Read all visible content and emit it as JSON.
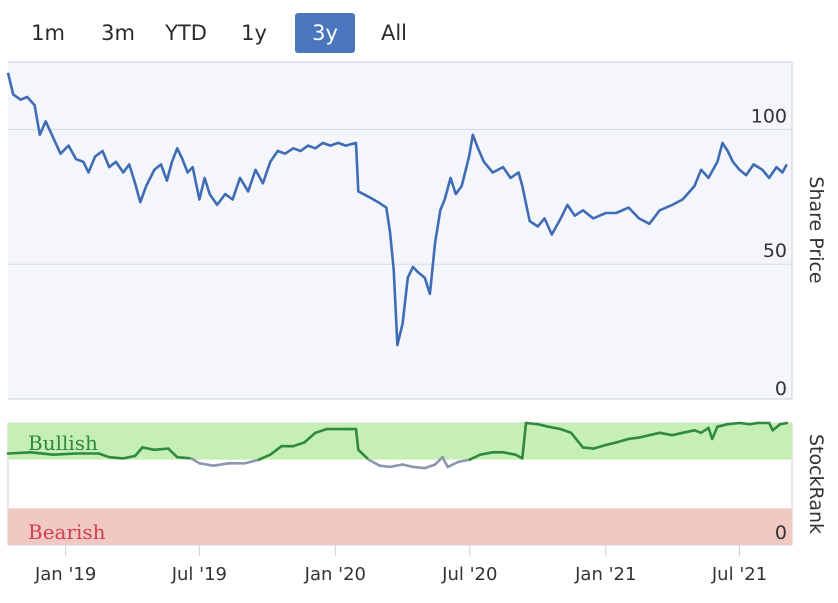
{
  "range_selector": {
    "buttons": [
      {
        "label": "1m",
        "active": false
      },
      {
        "label": "3m",
        "active": false
      },
      {
        "label": "YTD",
        "active": false
      },
      {
        "label": "1y",
        "active": false
      },
      {
        "label": "3y",
        "active": true
      },
      {
        "label": "All",
        "active": false
      }
    ]
  },
  "colors": {
    "price_line": "#3f6db5",
    "bullish_zone": "#c6efb5",
    "bearish_zone": "#f0c8c4",
    "stockrank_green": "#2f8a3c",
    "stockrank_grey": "#8c97ad",
    "plot_bg": "#f4f6fb",
    "bullish_text": "#2f8a3c",
    "bearish_text": "#d0404f",
    "active_button": "#4a76bd"
  },
  "chart_data": [
    {
      "type": "line",
      "name": "share_price",
      "ylabel": "Share Price",
      "yticks": [
        0,
        50,
        100
      ],
      "ylim": [
        0,
        125
      ],
      "xlim": [
        "2018-10-15",
        "2021-09-10"
      ],
      "x_ticks": [
        {
          "date": "2019-01-01",
          "label": "Jan '19"
        },
        {
          "date": "2019-07-01",
          "label": "Jul '19"
        },
        {
          "date": "2020-01-01",
          "label": "Jan '20"
        },
        {
          "date": "2020-07-01",
          "label": "Jul '20"
        },
        {
          "date": "2021-01-01",
          "label": "Jan '21"
        },
        {
          "date": "2021-07-01",
          "label": "Jul '21"
        }
      ],
      "grid": true,
      "points": [
        [
          "2018-10-15",
          121
        ],
        [
          "2018-10-22",
          113
        ],
        [
          "2018-11-01",
          111
        ],
        [
          "2018-11-10",
          112
        ],
        [
          "2018-11-20",
          109
        ],
        [
          "2018-11-27",
          98
        ],
        [
          "2018-12-05",
          103
        ],
        [
          "2018-12-15",
          97
        ],
        [
          "2018-12-25",
          91
        ],
        [
          "2019-01-05",
          94
        ],
        [
          "2019-01-15",
          89
        ],
        [
          "2019-01-25",
          88
        ],
        [
          "2019-02-01",
          84
        ],
        [
          "2019-02-10",
          90
        ],
        [
          "2019-02-20",
          92
        ],
        [
          "2019-03-01",
          86
        ],
        [
          "2019-03-10",
          88
        ],
        [
          "2019-03-20",
          84
        ],
        [
          "2019-03-28",
          87
        ],
        [
          "2019-04-05",
          80
        ],
        [
          "2019-04-12",
          73
        ],
        [
          "2019-04-20",
          79
        ],
        [
          "2019-05-01",
          85
        ],
        [
          "2019-05-10",
          87
        ],
        [
          "2019-05-18",
          81
        ],
        [
          "2019-05-25",
          88
        ],
        [
          "2019-06-01",
          93
        ],
        [
          "2019-06-08",
          89
        ],
        [
          "2019-06-15",
          84
        ],
        [
          "2019-06-22",
          86
        ],
        [
          "2019-07-01",
          74
        ],
        [
          "2019-07-08",
          82
        ],
        [
          "2019-07-15",
          76
        ],
        [
          "2019-07-25",
          72
        ],
        [
          "2019-08-05",
          76
        ],
        [
          "2019-08-15",
          74
        ],
        [
          "2019-08-25",
          82
        ],
        [
          "2019-09-05",
          77
        ],
        [
          "2019-09-15",
          85
        ],
        [
          "2019-09-25",
          80
        ],
        [
          "2019-10-05",
          88
        ],
        [
          "2019-10-15",
          92
        ],
        [
          "2019-10-25",
          91
        ],
        [
          "2019-11-05",
          93
        ],
        [
          "2019-11-15",
          92
        ],
        [
          "2019-11-25",
          94
        ],
        [
          "2019-12-05",
          93
        ],
        [
          "2019-12-15",
          95
        ],
        [
          "2019-12-25",
          94
        ],
        [
          "2020-01-05",
          95
        ],
        [
          "2020-01-15",
          94
        ],
        [
          "2020-01-29",
          95
        ],
        [
          "2020-02-01",
          77
        ],
        [
          "2020-02-15",
          75
        ],
        [
          "2020-02-28",
          73
        ],
        [
          "2020-03-10",
          71
        ],
        [
          "2020-03-15",
          62
        ],
        [
          "2020-03-20",
          48
        ],
        [
          "2020-03-25",
          20
        ],
        [
          "2020-04-01",
          28
        ],
        [
          "2020-04-08",
          45
        ],
        [
          "2020-04-15",
          49
        ],
        [
          "2020-04-22",
          47
        ],
        [
          "2020-05-01",
          45
        ],
        [
          "2020-05-08",
          39
        ],
        [
          "2020-05-15",
          58
        ],
        [
          "2020-05-22",
          70
        ],
        [
          "2020-05-28",
          74
        ],
        [
          "2020-06-05",
          82
        ],
        [
          "2020-06-12",
          76
        ],
        [
          "2020-06-20",
          79
        ],
        [
          "2020-06-30",
          90
        ],
        [
          "2020-07-05",
          98
        ],
        [
          "2020-07-12",
          93
        ],
        [
          "2020-07-20",
          88
        ],
        [
          "2020-08-01",
          84
        ],
        [
          "2020-08-15",
          86
        ],
        [
          "2020-08-25",
          82
        ],
        [
          "2020-09-05",
          84
        ],
        [
          "2020-09-10",
          79
        ],
        [
          "2020-09-20",
          66
        ],
        [
          "2020-10-01",
          64
        ],
        [
          "2020-10-10",
          67
        ],
        [
          "2020-10-20",
          61
        ],
        [
          "2020-11-01",
          67
        ],
        [
          "2020-11-10",
          72
        ],
        [
          "2020-11-20",
          68
        ],
        [
          "2020-12-01",
          70
        ],
        [
          "2020-12-15",
          67
        ],
        [
          "2021-01-01",
          69
        ],
        [
          "2021-01-15",
          69
        ],
        [
          "2021-02-01",
          71
        ],
        [
          "2021-02-15",
          67
        ],
        [
          "2021-03-01",
          65
        ],
        [
          "2021-03-15",
          70
        ],
        [
          "2021-04-01",
          72
        ],
        [
          "2021-04-15",
          74
        ],
        [
          "2021-05-01",
          79
        ],
        [
          "2021-05-10",
          85
        ],
        [
          "2021-05-20",
          82
        ],
        [
          "2021-06-01",
          88
        ],
        [
          "2021-06-08",
          95
        ],
        [
          "2021-06-15",
          92
        ],
        [
          "2021-06-22",
          88
        ],
        [
          "2021-07-01",
          85
        ],
        [
          "2021-07-10",
          83
        ],
        [
          "2021-07-20",
          87
        ],
        [
          "2021-08-01",
          85
        ],
        [
          "2021-08-10",
          82
        ],
        [
          "2021-08-20",
          86
        ],
        [
          "2021-08-28",
          84
        ],
        [
          "2021-09-03",
          87
        ]
      ]
    },
    {
      "type": "line",
      "name": "stockrank",
      "ylabel": "StockRank",
      "yticks": [
        0
      ],
      "ylim": [
        0,
        100
      ],
      "zones": [
        {
          "label": "Bullish",
          "from": 70,
          "to": 100
        },
        {
          "label": "Bearish",
          "from": 0,
          "to": 30
        }
      ],
      "points": [
        [
          "2018-10-15",
          75
        ],
        [
          "2018-11-15",
          76
        ],
        [
          "2018-12-15",
          74
        ],
        [
          "2019-01-15",
          75
        ],
        [
          "2019-02-15",
          75
        ],
        [
          "2019-03-01",
          72
        ],
        [
          "2019-03-20",
          71
        ],
        [
          "2019-04-05",
          73
        ],
        [
          "2019-04-15",
          80
        ],
        [
          "2019-05-01",
          78
        ],
        [
          "2019-05-20",
          79
        ],
        [
          "2019-06-01",
          72
        ],
        [
          "2019-06-20",
          71
        ],
        [
          "2019-07-01",
          67
        ],
        [
          "2019-07-20",
          65
        ],
        [
          "2019-08-10",
          67
        ],
        [
          "2019-09-01",
          67
        ],
        [
          "2019-09-20",
          70
        ],
        [
          "2019-10-05",
          74
        ],
        [
          "2019-10-20",
          81
        ],
        [
          "2019-11-05",
          81
        ],
        [
          "2019-11-20",
          84
        ],
        [
          "2019-12-05",
          92
        ],
        [
          "2019-12-20",
          95
        ],
        [
          "2020-01-15",
          95
        ],
        [
          "2020-01-29",
          95
        ],
        [
          "2020-02-01",
          78
        ],
        [
          "2020-02-15",
          70
        ],
        [
          "2020-03-01",
          65
        ],
        [
          "2020-03-15",
          64
        ],
        [
          "2020-04-01",
          66
        ],
        [
          "2020-04-15",
          64
        ],
        [
          "2020-05-01",
          63
        ],
        [
          "2020-05-15",
          66
        ],
        [
          "2020-05-25",
          72
        ],
        [
          "2020-06-01",
          64
        ],
        [
          "2020-06-15",
          68
        ],
        [
          "2020-07-01",
          70
        ],
        [
          "2020-07-15",
          74
        ],
        [
          "2020-08-01",
          76
        ],
        [
          "2020-08-15",
          76
        ],
        [
          "2020-09-01",
          74
        ],
        [
          "2020-09-10",
          71
        ],
        [
          "2020-09-15",
          100
        ],
        [
          "2020-10-01",
          99
        ],
        [
          "2020-10-15",
          97
        ],
        [
          "2020-11-01",
          95
        ],
        [
          "2020-11-15",
          92
        ],
        [
          "2020-12-01",
          80
        ],
        [
          "2020-12-15",
          79
        ],
        [
          "2021-01-01",
          82
        ],
        [
          "2021-01-15",
          84
        ],
        [
          "2021-02-01",
          87
        ],
        [
          "2021-02-15",
          88
        ],
        [
          "2021-03-01",
          90
        ],
        [
          "2021-03-15",
          92
        ],
        [
          "2021-04-01",
          90
        ],
        [
          "2021-04-15",
          92
        ],
        [
          "2021-05-01",
          94
        ],
        [
          "2021-05-10",
          92
        ],
        [
          "2021-05-20",
          96
        ],
        [
          "2021-05-25",
          87
        ],
        [
          "2021-06-01",
          97
        ],
        [
          "2021-06-15",
          99
        ],
        [
          "2021-07-01",
          100
        ],
        [
          "2021-07-15",
          99
        ],
        [
          "2021-07-25",
          100
        ],
        [
          "2021-08-10",
          100
        ],
        [
          "2021-08-15",
          94
        ],
        [
          "2021-08-25",
          99
        ],
        [
          "2021-09-03",
          100
        ]
      ]
    }
  ]
}
